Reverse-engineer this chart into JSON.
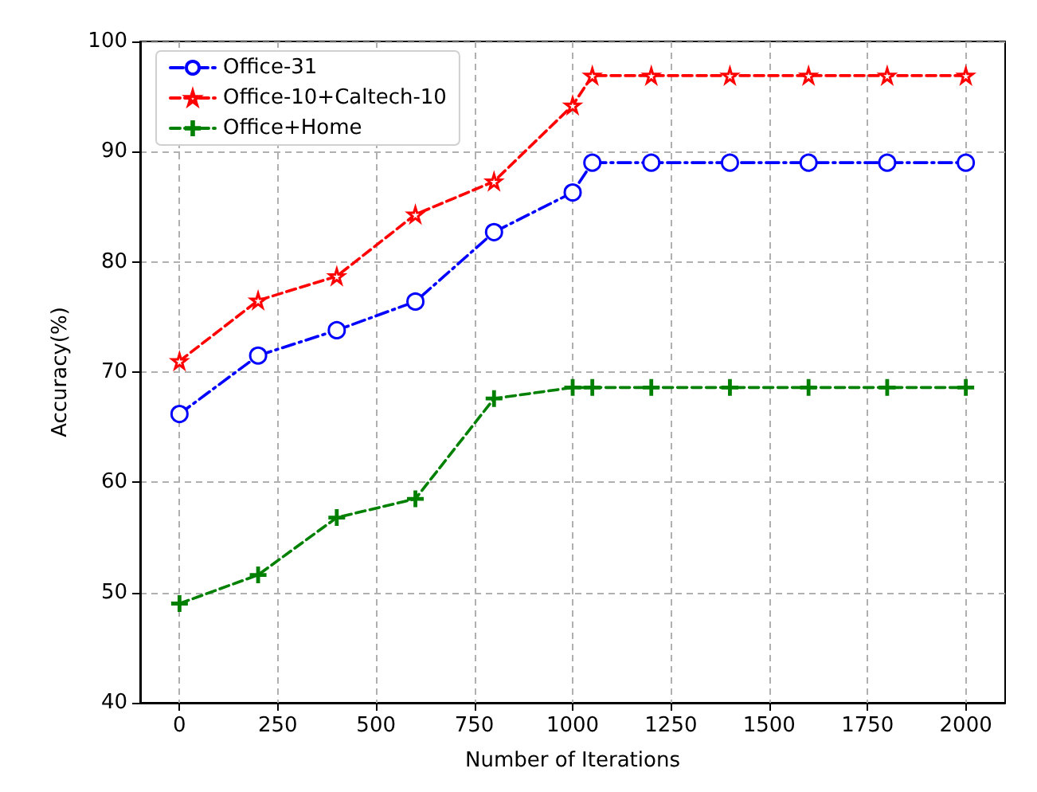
{
  "chart_data": {
    "type": "line",
    "xlabel": "Number of Iterations",
    "ylabel": "Accuracy(%)",
    "x": [
      0,
      200,
      400,
      600,
      800,
      1000,
      1050,
      1200,
      1400,
      1600,
      1800,
      2000
    ],
    "series": [
      {
        "name": "Office-31",
        "color": "#0000ff",
        "marker": "circle",
        "line_style": "dashdot",
        "values": [
          66.2,
          71.5,
          73.8,
          76.4,
          82.7,
          86.3,
          89,
          89,
          89,
          89,
          89,
          89
        ]
      },
      {
        "name": "Office-10+Caltech-10",
        "color": "#ff0000",
        "marker": "star",
        "line_style": "dashed",
        "values": [
          71,
          76.5,
          78.7,
          84.3,
          87.3,
          94.2,
          96.9,
          96.9,
          96.9,
          96.9,
          96.9,
          96.9
        ]
      },
      {
        "name": "Office+Home",
        "color": "#008000",
        "marker": "cross",
        "line_style": "dashed",
        "values": [
          49,
          51.6,
          56.8,
          58.5,
          67.6,
          68.6,
          68.6,
          68.6,
          68.6,
          68.6,
          68.6,
          68.6
        ]
      }
    ],
    "xlim": [
      -100,
      2100
    ],
    "xticks": [
      0,
      250,
      500,
      750,
      1000,
      1250,
      1500,
      1750,
      2000
    ],
    "ylim": [
      40,
      100
    ],
    "yticks": [
      40,
      50,
      60,
      70,
      80,
      90,
      100
    ],
    "grid": true,
    "legend": "top left"
  }
}
